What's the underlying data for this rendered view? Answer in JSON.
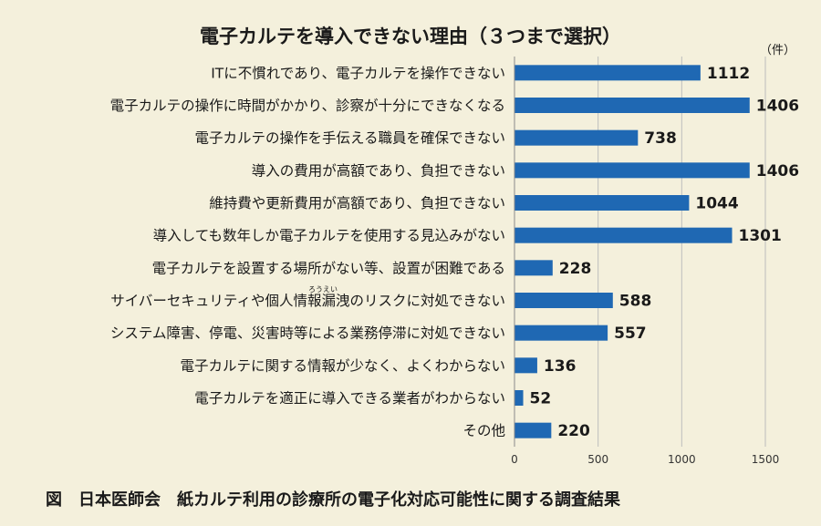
{
  "chart_data": {
    "type": "bar",
    "orientation": "horizontal",
    "title": "電子カルテを導入できない理由（３つまで選択）",
    "unit": "（件）",
    "categories": [
      "ITに不慣れであり、電子カルテを操作できない",
      "電子カルテの操作に時間がかかり、診察が十分にできなくなる",
      "電子カルテの操作を手伝える職員を確保できない",
      "導入の費用が高額であり、負担できない",
      "維持費や更新費用が高額であり、負担できない",
      "導入しても数年しか電子カルテを使用する見込みがない",
      "電子カルテを設置する場所がない等、設置が困難である",
      "サイバーセキュリティや個人情報漏洩のリスクに対処できない",
      "システム障害、停電、災害時等による業務停滞に対処できない",
      "電子カルテに関する情報が少なく、よくわからない",
      "電子カルテを適正に導入できる業者がわからない",
      "その他"
    ],
    "values": [
      1112,
      1406,
      738,
      1406,
      1044,
      1301,
      228,
      588,
      557,
      136,
      52,
      220
    ],
    "xlim": [
      0,
      1500
    ],
    "xticks": [
      0,
      500,
      1000,
      1500
    ],
    "grid": true,
    "bar_color": "#1f68b3",
    "ruby": "ろうえい"
  },
  "caption": "図　日本医師会　紙カルテ利用の診療所の電子化対応可能性に関する調査結果"
}
